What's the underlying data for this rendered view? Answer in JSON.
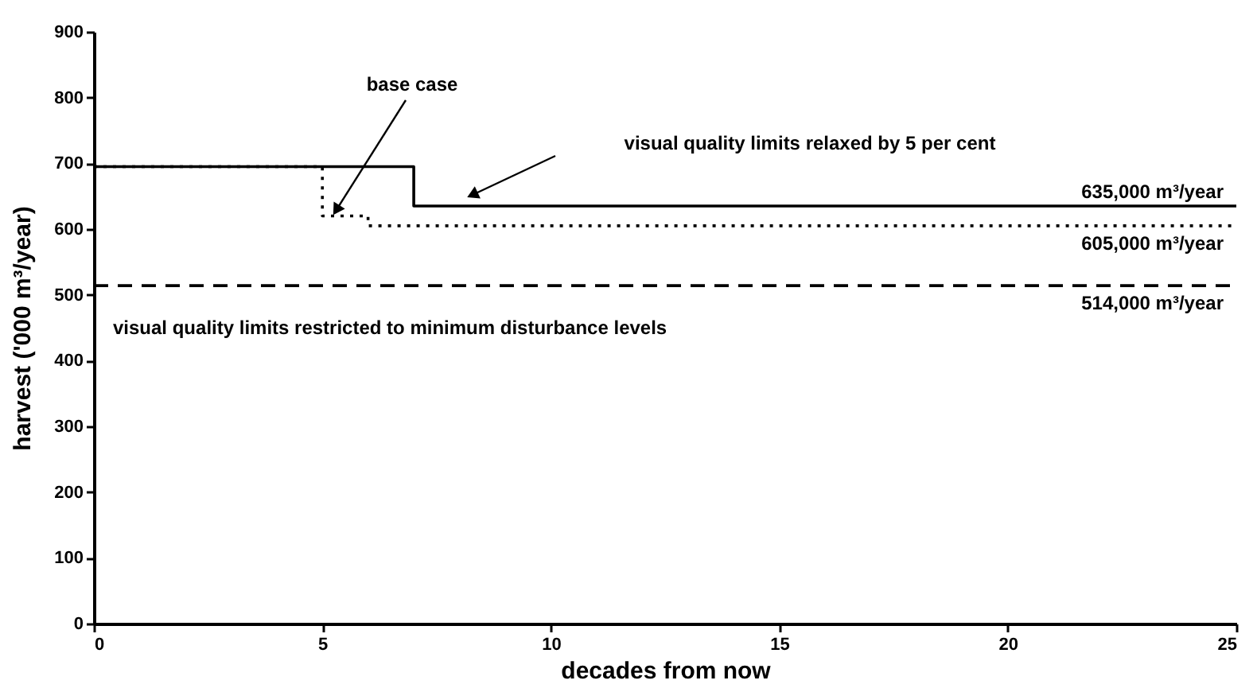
{
  "chart_data": {
    "type": "step",
    "xlabel": "decades from now",
    "ylabel": "harvest ('000 m³/year)",
    "xlim": [
      0,
      25
    ],
    "xticks": [
      0,
      5,
      10,
      15,
      20,
      25
    ],
    "ylim": [
      0,
      900
    ],
    "yticks": [
      0,
      100,
      200,
      300,
      400,
      500,
      600,
      700,
      800,
      900
    ],
    "grid": false,
    "marker": "none",
    "series": [
      {
        "name": "visual quality limits relaxed by 5 per cent",
        "color": "#000000",
        "line_style": "solid",
        "x": [
          0,
          7,
          25
        ],
        "values": [
          695,
          635,
          635
        ]
      },
      {
        "name": "base case",
        "color": "#000000",
        "line_style": "dotted",
        "x": [
          0,
          5,
          6,
          25
        ],
        "values": [
          695,
          620,
          605,
          605
        ]
      },
      {
        "name": "visual quality limits restricted to minimum disturbance levels",
        "color": "#000000",
        "line_style": "dashed",
        "x": [
          0,
          25
        ],
        "values": [
          514,
          514
        ]
      }
    ],
    "annotations": [
      {
        "text": "635,000 m³/year",
        "y": 635
      },
      {
        "text": "605,000 m³/year",
        "y": 605
      },
      {
        "text": "514,000 m³/year",
        "y": 514
      }
    ]
  }
}
